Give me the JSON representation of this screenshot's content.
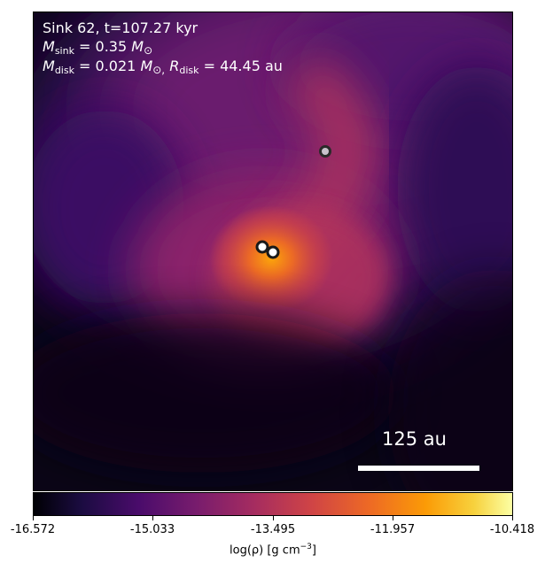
{
  "title": {
    "sink_label": "Sink 62, t=107.27 kyr",
    "mass_sink": {
      "symbol": "M",
      "subscript": "sink",
      "value": "= 0.35",
      "unit_symbol": "M",
      "unit_sub": "⊙"
    },
    "mass_disk": {
      "symbol": "M",
      "subscript": "disk",
      "value": "= 0.021",
      "unit_symbol": "M",
      "unit_sub": "⊙,"
    },
    "radius_disk": {
      "symbol": "R",
      "subscript": "disk",
      "value": "= 44.45 au"
    }
  },
  "scale_bar": {
    "label": "125 au"
  },
  "colorbar": {
    "ticks": [
      "-16.572",
      "-15.033",
      "-13.495",
      "-11.957",
      "-10.418"
    ],
    "label_main": "log(ρ) [g cm",
    "label_exp": "−3",
    "label_end": "]",
    "colormap": "inferno"
  },
  "sinks": [
    {
      "name": "sink-a",
      "fill": "#ffffff"
    },
    {
      "name": "sink-b",
      "fill": "#ffffff"
    },
    {
      "name": "sink-c",
      "fill": "#c9c2cc"
    }
  ]
}
